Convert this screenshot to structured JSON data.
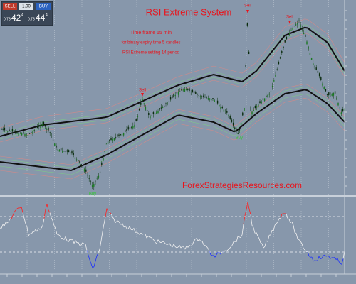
{
  "header": {
    "title": "RSI Extreme System"
  },
  "notes": [
    "Time frame 15 min",
    "for binary expiry time 5 candles",
    "RSI Extreme setting 14  period"
  ],
  "trade_panel": {
    "sell": "SELL",
    "lot": "1.00",
    "buy": "BUY",
    "sell_small": "0.73",
    "sell_big": "42",
    "sell_sup": "4",
    "buy_small": "0.73",
    "buy_big": "44",
    "buy_sup": "4"
  },
  "signals": {
    "sell_1": "Sell",
    "sell_2": "Sell",
    "sell_3": "Sell",
    "buy_1": "Buy",
    "buy_2": "Buy"
  },
  "watermark": "ForexStrategiesResources.com"
}
